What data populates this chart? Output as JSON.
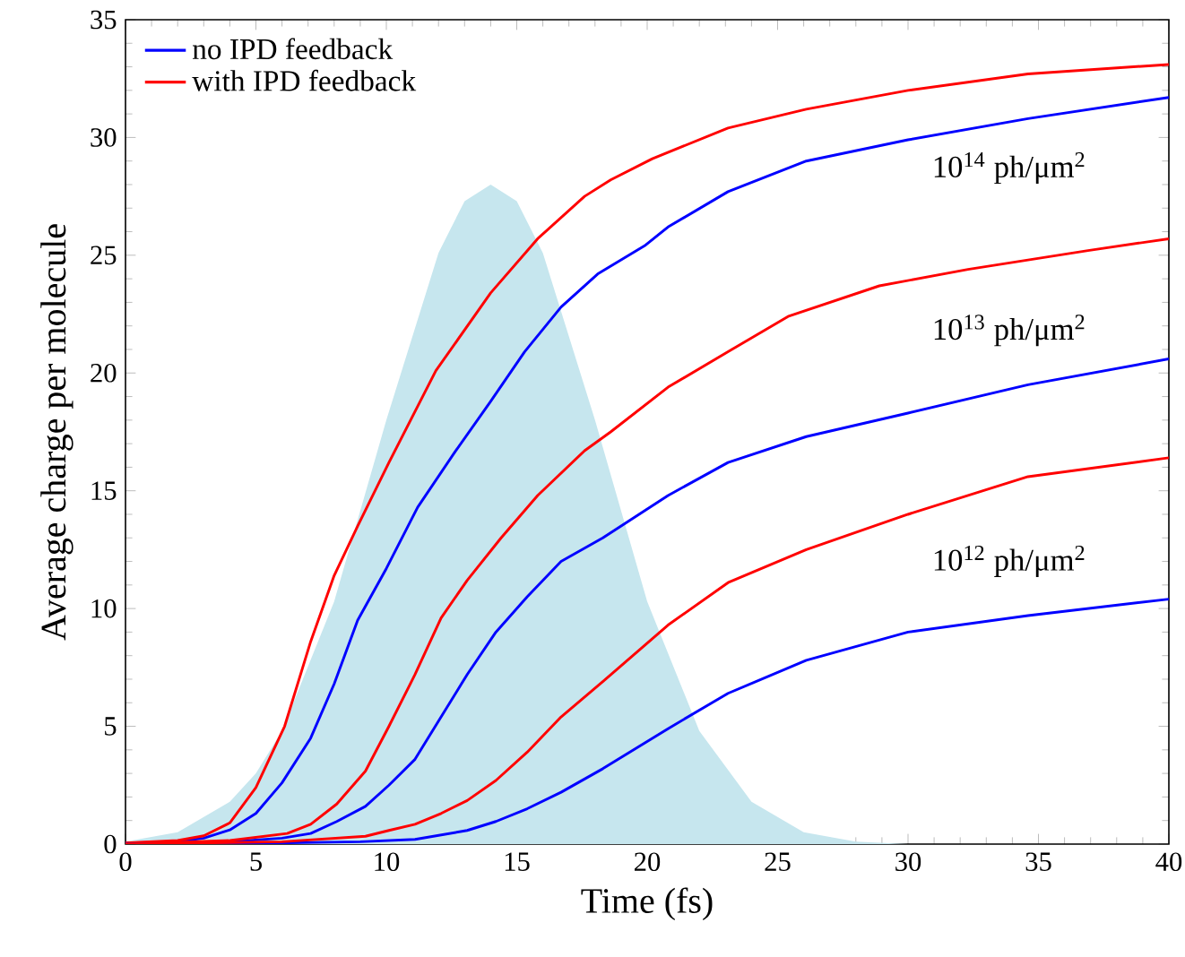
{
  "chart_data": {
    "type": "line",
    "xlabel": "Time (fs)",
    "ylabel": "Average charge per molecule",
    "xlim": [
      0,
      40
    ],
    "ylim": [
      0,
      35
    ],
    "xticks": [
      0,
      5,
      10,
      15,
      20,
      25,
      30,
      35,
      40
    ],
    "yticks": [
      0,
      5,
      10,
      15,
      20,
      25,
      30,
      35
    ],
    "grid": false,
    "legend": "top left",
    "marker": "none",
    "line_style": "solid",
    "series": [
      {
        "type": "area",
        "color": "#c6e6ee",
        "x": [
          0,
          2,
          4,
          5,
          6,
          8,
          10,
          12,
          13,
          14,
          15,
          16,
          18,
          20,
          22,
          24,
          26,
          28,
          30
        ],
        "values": [
          0.1,
          0.5,
          1.8,
          3.0,
          4.8,
          10.3,
          18.0,
          25.1,
          27.3,
          28.0,
          27.3,
          25.1,
          18.0,
          10.3,
          4.8,
          1.8,
          0.5,
          0.1,
          0.0
        ]
      },
      {
        "name": "no IPD feedback",
        "color": "#0000ff",
        "x": [
          0,
          2,
          3,
          4,
          5,
          6,
          7.1,
          8,
          8.9,
          10,
          11.2,
          12.6,
          14,
          15.3,
          16.7,
          18.1,
          19.9,
          20.8,
          23.1,
          26.1,
          30,
          34.6,
          40
        ],
        "values": [
          0.05,
          0.1,
          0.25,
          0.6,
          1.3,
          2.6,
          4.5,
          6.8,
          9.5,
          11.7,
          14.3,
          16.6,
          18.8,
          20.9,
          22.8,
          24.2,
          25.4,
          26.2,
          27.7,
          29.0,
          29.9,
          30.8,
          31.7
        ]
      },
      {
        "name": "with IPD feedback",
        "color": "#ff0000",
        "x": [
          0,
          2,
          3,
          4,
          5,
          6.1,
          7.1,
          8,
          8.9,
          10.1,
          11.9,
          14,
          15.8,
          17.6,
          18.6,
          20.2,
          23.1,
          26.1,
          30,
          34.6,
          40
        ],
        "values": [
          0.05,
          0.15,
          0.35,
          0.9,
          2.4,
          5.0,
          8.6,
          11.4,
          13.5,
          16.2,
          20.1,
          23.4,
          25.7,
          27.5,
          28.2,
          29.1,
          30.4,
          31.2,
          32.0,
          32.7,
          33.1
        ]
      },
      {
        "color": "#0000ff",
        "x": [
          0,
          4,
          6,
          7.1,
          8.1,
          9.2,
          10.1,
          11.1,
          12.1,
          13.1,
          14.2,
          15.4,
          16.7,
          18.3,
          20.8,
          23.1,
          26.1,
          30,
          34.6,
          40
        ],
        "values": [
          0.0,
          0.1,
          0.25,
          0.45,
          0.96,
          1.6,
          2.5,
          3.6,
          5.4,
          7.2,
          9.0,
          10.5,
          12.0,
          13.0,
          14.8,
          16.2,
          17.3,
          18.3,
          19.5,
          20.6
        ]
      },
      {
        "color": "#ff0000",
        "x": [
          0,
          4,
          6.2,
          7.1,
          8.1,
          9.2,
          10.1,
          11.1,
          12.1,
          13.1,
          14.4,
          15.8,
          17.6,
          18.6,
          20.8,
          23.1,
          25.4,
          28.9,
          32.3,
          36.9,
          40
        ],
        "values": [
          0.0,
          0.15,
          0.45,
          0.84,
          1.7,
          3.1,
          5.0,
          7.2,
          9.6,
          11.2,
          13.0,
          14.8,
          16.7,
          17.5,
          19.4,
          20.9,
          22.4,
          23.7,
          24.4,
          25.2,
          25.7
        ]
      },
      {
        "color": "#0000ff",
        "x": [
          0,
          6,
          9,
          11.1,
          13.1,
          14.2,
          15.4,
          16.7,
          18.3,
          20.8,
          23.1,
          26.1,
          30,
          34.6,
          40
        ],
        "values": [
          0.0,
          0.05,
          0.1,
          0.2,
          0.58,
          0.96,
          1.5,
          2.2,
          3.2,
          4.9,
          6.4,
          7.8,
          9.0,
          9.7,
          10.4
        ]
      },
      {
        "color": "#ff0000",
        "x": [
          0,
          6,
          9.2,
          10.1,
          11.1,
          12.1,
          13.1,
          14.2,
          15.4,
          16.7,
          18.3,
          20.8,
          23.1,
          26.1,
          30,
          34.6,
          40
        ],
        "values": [
          0.0,
          0.1,
          0.33,
          0.58,
          0.84,
          1.3,
          1.85,
          2.7,
          3.9,
          5.4,
          6.9,
          9.3,
          11.1,
          12.5,
          14.0,
          15.6,
          16.4
        ]
      }
    ],
    "annotations": [
      "10$^{14}$ ph/μm$^{2}$",
      "10$^{13}$ ph/μm$^{2}$",
      "10$^{12}$ ph/μm$^{2}$"
    ]
  }
}
